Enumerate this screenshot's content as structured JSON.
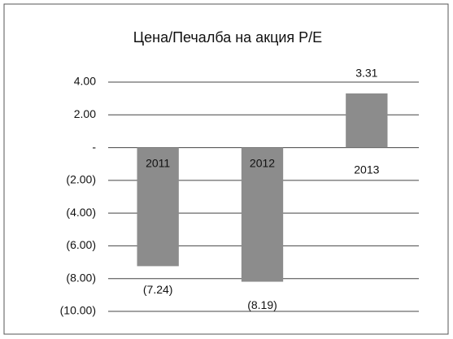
{
  "chart_data": {
    "type": "bar",
    "title": "Цена/Печалба на акция Р/Е",
    "categories": [
      "2011",
      "2012",
      "2013"
    ],
    "values": [
      -7.24,
      -8.19,
      3.31
    ],
    "value_labels": [
      "(7.24)",
      "(8.19)",
      "3.31"
    ],
    "color": "#8c8c8c",
    "ylim": [
      -10,
      4
    ],
    "yticks": [
      {
        "value": 4,
        "label": "4.00"
      },
      {
        "value": 2,
        "label": "2.00"
      },
      {
        "value": 0,
        "label": "-"
      },
      {
        "value": -2,
        "label": "(2.00)"
      },
      {
        "value": -4,
        "label": "(4.00)"
      },
      {
        "value": -6,
        "label": "(6.00)"
      },
      {
        "value": -8,
        "label": "(8.00)"
      },
      {
        "value": -10,
        "label": "(10.00)"
      }
    ],
    "grid": true
  }
}
